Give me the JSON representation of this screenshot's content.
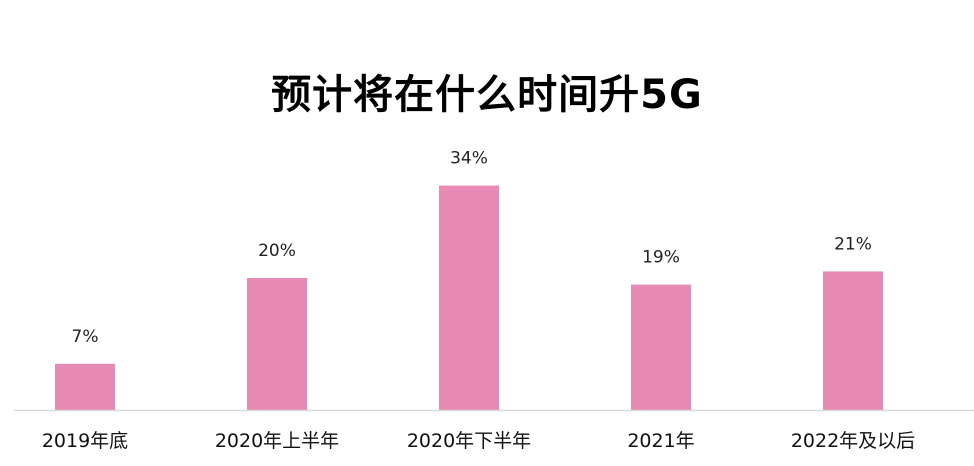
{
  "chart_data": {
    "type": "bar",
    "title": "预计将在什么时间升5G",
    "categories": [
      "2019年底",
      "2020年上半年",
      "2020年下半年",
      "2021年",
      "2022年及以后"
    ],
    "values": [
      7,
      20,
      34,
      19,
      21
    ],
    "data_labels": [
      "7%",
      "20%",
      "34%",
      "19%",
      "21%"
    ],
    "unit": "%",
    "ylim": [
      0,
      35
    ],
    "grid": false,
    "legend": "none",
    "colors": {
      "bar": "#e78ab5",
      "axis": "#d9d9d9"
    }
  }
}
